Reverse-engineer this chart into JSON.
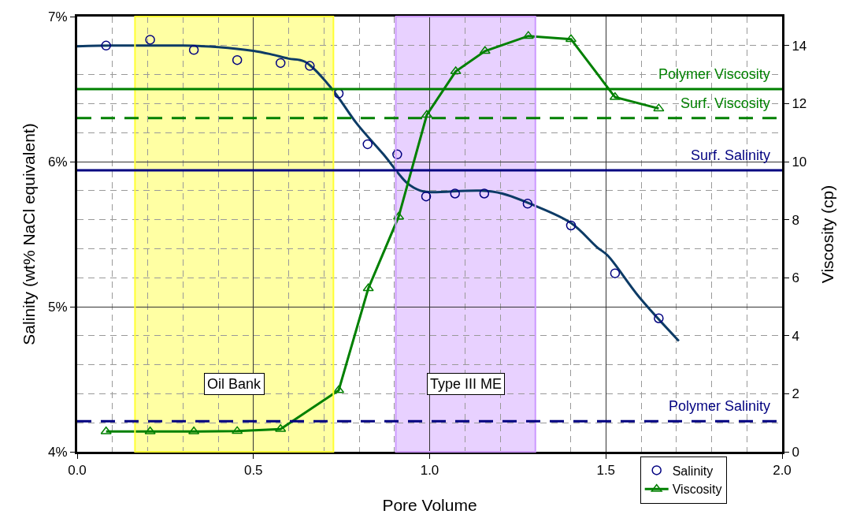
{
  "chart_data": {
    "type": "scatter",
    "xlabel": "Pore Volume",
    "ylabel": "Salinity (wt% NaCl equivalent)",
    "y2label": "Viscosity (cp)",
    "xlim": [
      0,
      2
    ],
    "xticks": [
      {
        "value": 0,
        "label": "0.0"
      },
      {
        "value": 0.5,
        "label": "0.5"
      },
      {
        "value": 1,
        "label": "1.0"
      },
      {
        "value": 1.5,
        "label": "1.5"
      },
      {
        "value": 2,
        "label": "2.0"
      }
    ],
    "ylim": [
      4,
      7
    ],
    "yticks": [
      {
        "value": 4,
        "label": "4%"
      },
      {
        "value": 5,
        "label": "5%"
      },
      {
        "value": 6,
        "label": "6%"
      },
      {
        "value": 7,
        "label": "7%"
      }
    ],
    "y2lim": [
      0,
      15
    ],
    "y2ticks": [
      0,
      2,
      4,
      6,
      8,
      10,
      12,
      14
    ],
    "grid": true,
    "legend": "bottom right",
    "series": [
      {
        "type": "line",
        "color": "#0d3b66",
        "marker": "none",
        "x": [
          0,
          0.1,
          0.2,
          0.3,
          0.4,
          0.5,
          0.55,
          0.6,
          0.645,
          0.72,
          0.794,
          0.869,
          0.936,
          0.974,
          1.0,
          1.146,
          1.206,
          1.295,
          1.401,
          1.475,
          1.505,
          1.594,
          1.707
        ],
        "values": [
          6.795,
          6.8,
          6.8,
          6.8,
          6.79,
          6.764,
          6.74,
          6.71,
          6.69,
          6.51,
          6.26,
          6.05,
          5.853,
          5.8,
          5.79,
          5.8,
          5.78,
          5.7,
          5.577,
          5.41,
          5.353,
          5.068,
          4.764
        ]
      },
      {
        "type": "scatter",
        "name": "Salinity",
        "color": "#000080",
        "marker": "circle",
        "x": [
          0.082,
          0.207,
          0.331,
          0.454,
          0.577,
          0.66,
          0.742,
          0.824,
          0.908,
          0.99,
          1.072,
          1.155,
          1.278,
          1.401,
          1.526,
          1.65
        ],
        "values": [
          6.8,
          6.84,
          6.77,
          6.7,
          6.68,
          6.66,
          6.47,
          6.12,
          6.05,
          5.76,
          5.78,
          5.78,
          5.71,
          5.56,
          5.23,
          4.92
        ]
      },
      {
        "type": "line",
        "name": "Viscosity",
        "color": "#008000",
        "marker": "triangle",
        "axis": "y2",
        "x": [
          0.082,
          0.207,
          0.331,
          0.454,
          0.577,
          0.742,
          0.826,
          0.912,
          0.992,
          1.074,
          1.157,
          1.28,
          1.401,
          1.526,
          1.65
        ],
        "values": [
          0.7,
          0.7,
          0.7,
          0.71,
          0.78,
          2.12,
          5.63,
          8.1,
          11.61,
          13.11,
          13.81,
          14.33,
          14.22,
          12.22,
          11.83
        ]
      }
    ],
    "ref_lines": [
      {
        "axis": "y2",
        "value": 12.5,
        "label": "Polymer Viscosity",
        "color": "#008000",
        "line_style": "solid"
      },
      {
        "axis": "y2",
        "value": 11.5,
        "label": "Surf. Viscosity",
        "color": "#008000",
        "line_style": "dashed"
      },
      {
        "axis": "y",
        "value": 5.94,
        "label": "Surf. Salinity",
        "color": "#000080",
        "line_style": "solid"
      },
      {
        "axis": "y",
        "value": 4.21,
        "label": "Polymer Salinity",
        "color": "#000080",
        "line_style": "dashed"
      }
    ],
    "bands": [
      {
        "axis": "x",
        "from": 0.164,
        "to": 0.727,
        "label": "Oil Bank",
        "color": "#ffff33"
      },
      {
        "axis": "x",
        "from": 0.904,
        "to": 1.3,
        "label": "Type III ME",
        "color": "#cc99ff"
      }
    ]
  }
}
